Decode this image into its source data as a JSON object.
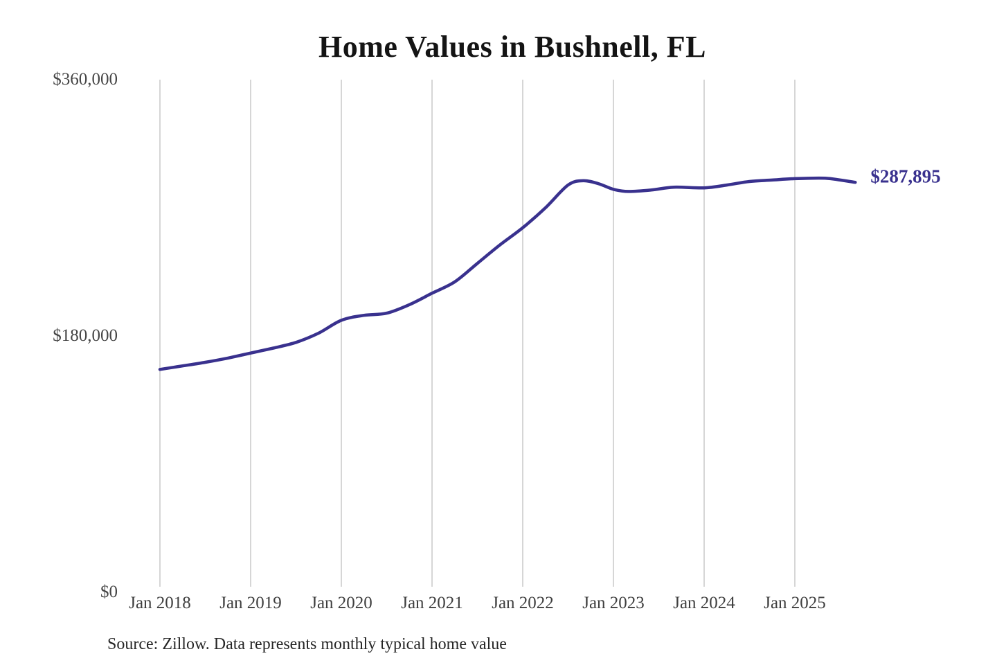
{
  "chart_data": {
    "type": "line",
    "title": "Home Values in Bushnell, FL",
    "series_name": "Monthly typical home value",
    "unit": "USD",
    "x": [
      "2018-01",
      "2018-04",
      "2018-07",
      "2018-10",
      "2019-01",
      "2019-04",
      "2019-07",
      "2019-10",
      "2020-01",
      "2020-04",
      "2020-07",
      "2020-10",
      "2021-01",
      "2021-04",
      "2021-07",
      "2021-10",
      "2022-01",
      "2022-04",
      "2022-07",
      "2022-09",
      "2022-11",
      "2023-01",
      "2023-03",
      "2023-06",
      "2023-09",
      "2024-01",
      "2024-04",
      "2024-07",
      "2024-10",
      "2025-01",
      "2025-05",
      "2025-07",
      "2025-09"
    ],
    "values": [
      156500,
      159000,
      161500,
      164500,
      168000,
      171500,
      175500,
      182000,
      191000,
      194500,
      196000,
      202000,
      210000,
      218000,
      231000,
      244000,
      256000,
      270000,
      286000,
      289000,
      287000,
      283000,
      281500,
      282500,
      284500,
      284000,
      286000,
      288500,
      289500,
      290500,
      290800,
      289500,
      287895
    ],
    "x_ticks": [
      "Jan 2018",
      "Jan 2019",
      "Jan 2020",
      "Jan 2021",
      "Jan 2022",
      "Jan 2023",
      "Jan 2024",
      "Jan 2025"
    ],
    "y_ticks": [
      {
        "value": 0,
        "label": "$0"
      },
      {
        "value": 180000,
        "label": "$180,000"
      },
      {
        "value": 360000,
        "label": "$360,000"
      }
    ],
    "ylim": [
      0,
      360000
    ],
    "grid": "vertical",
    "legend": "none",
    "end_value": 287895,
    "end_label": "$287,895"
  },
  "source_note": "Source: Zillow. Data represents monthly typical home value",
  "colors": {
    "line": "#39318e",
    "grid": "#c9c9c9",
    "title_text": "#141414",
    "axis_text": "#454545",
    "source_text": "#262626",
    "end_label_text": "#39318e",
    "background": "#ffffff"
  }
}
